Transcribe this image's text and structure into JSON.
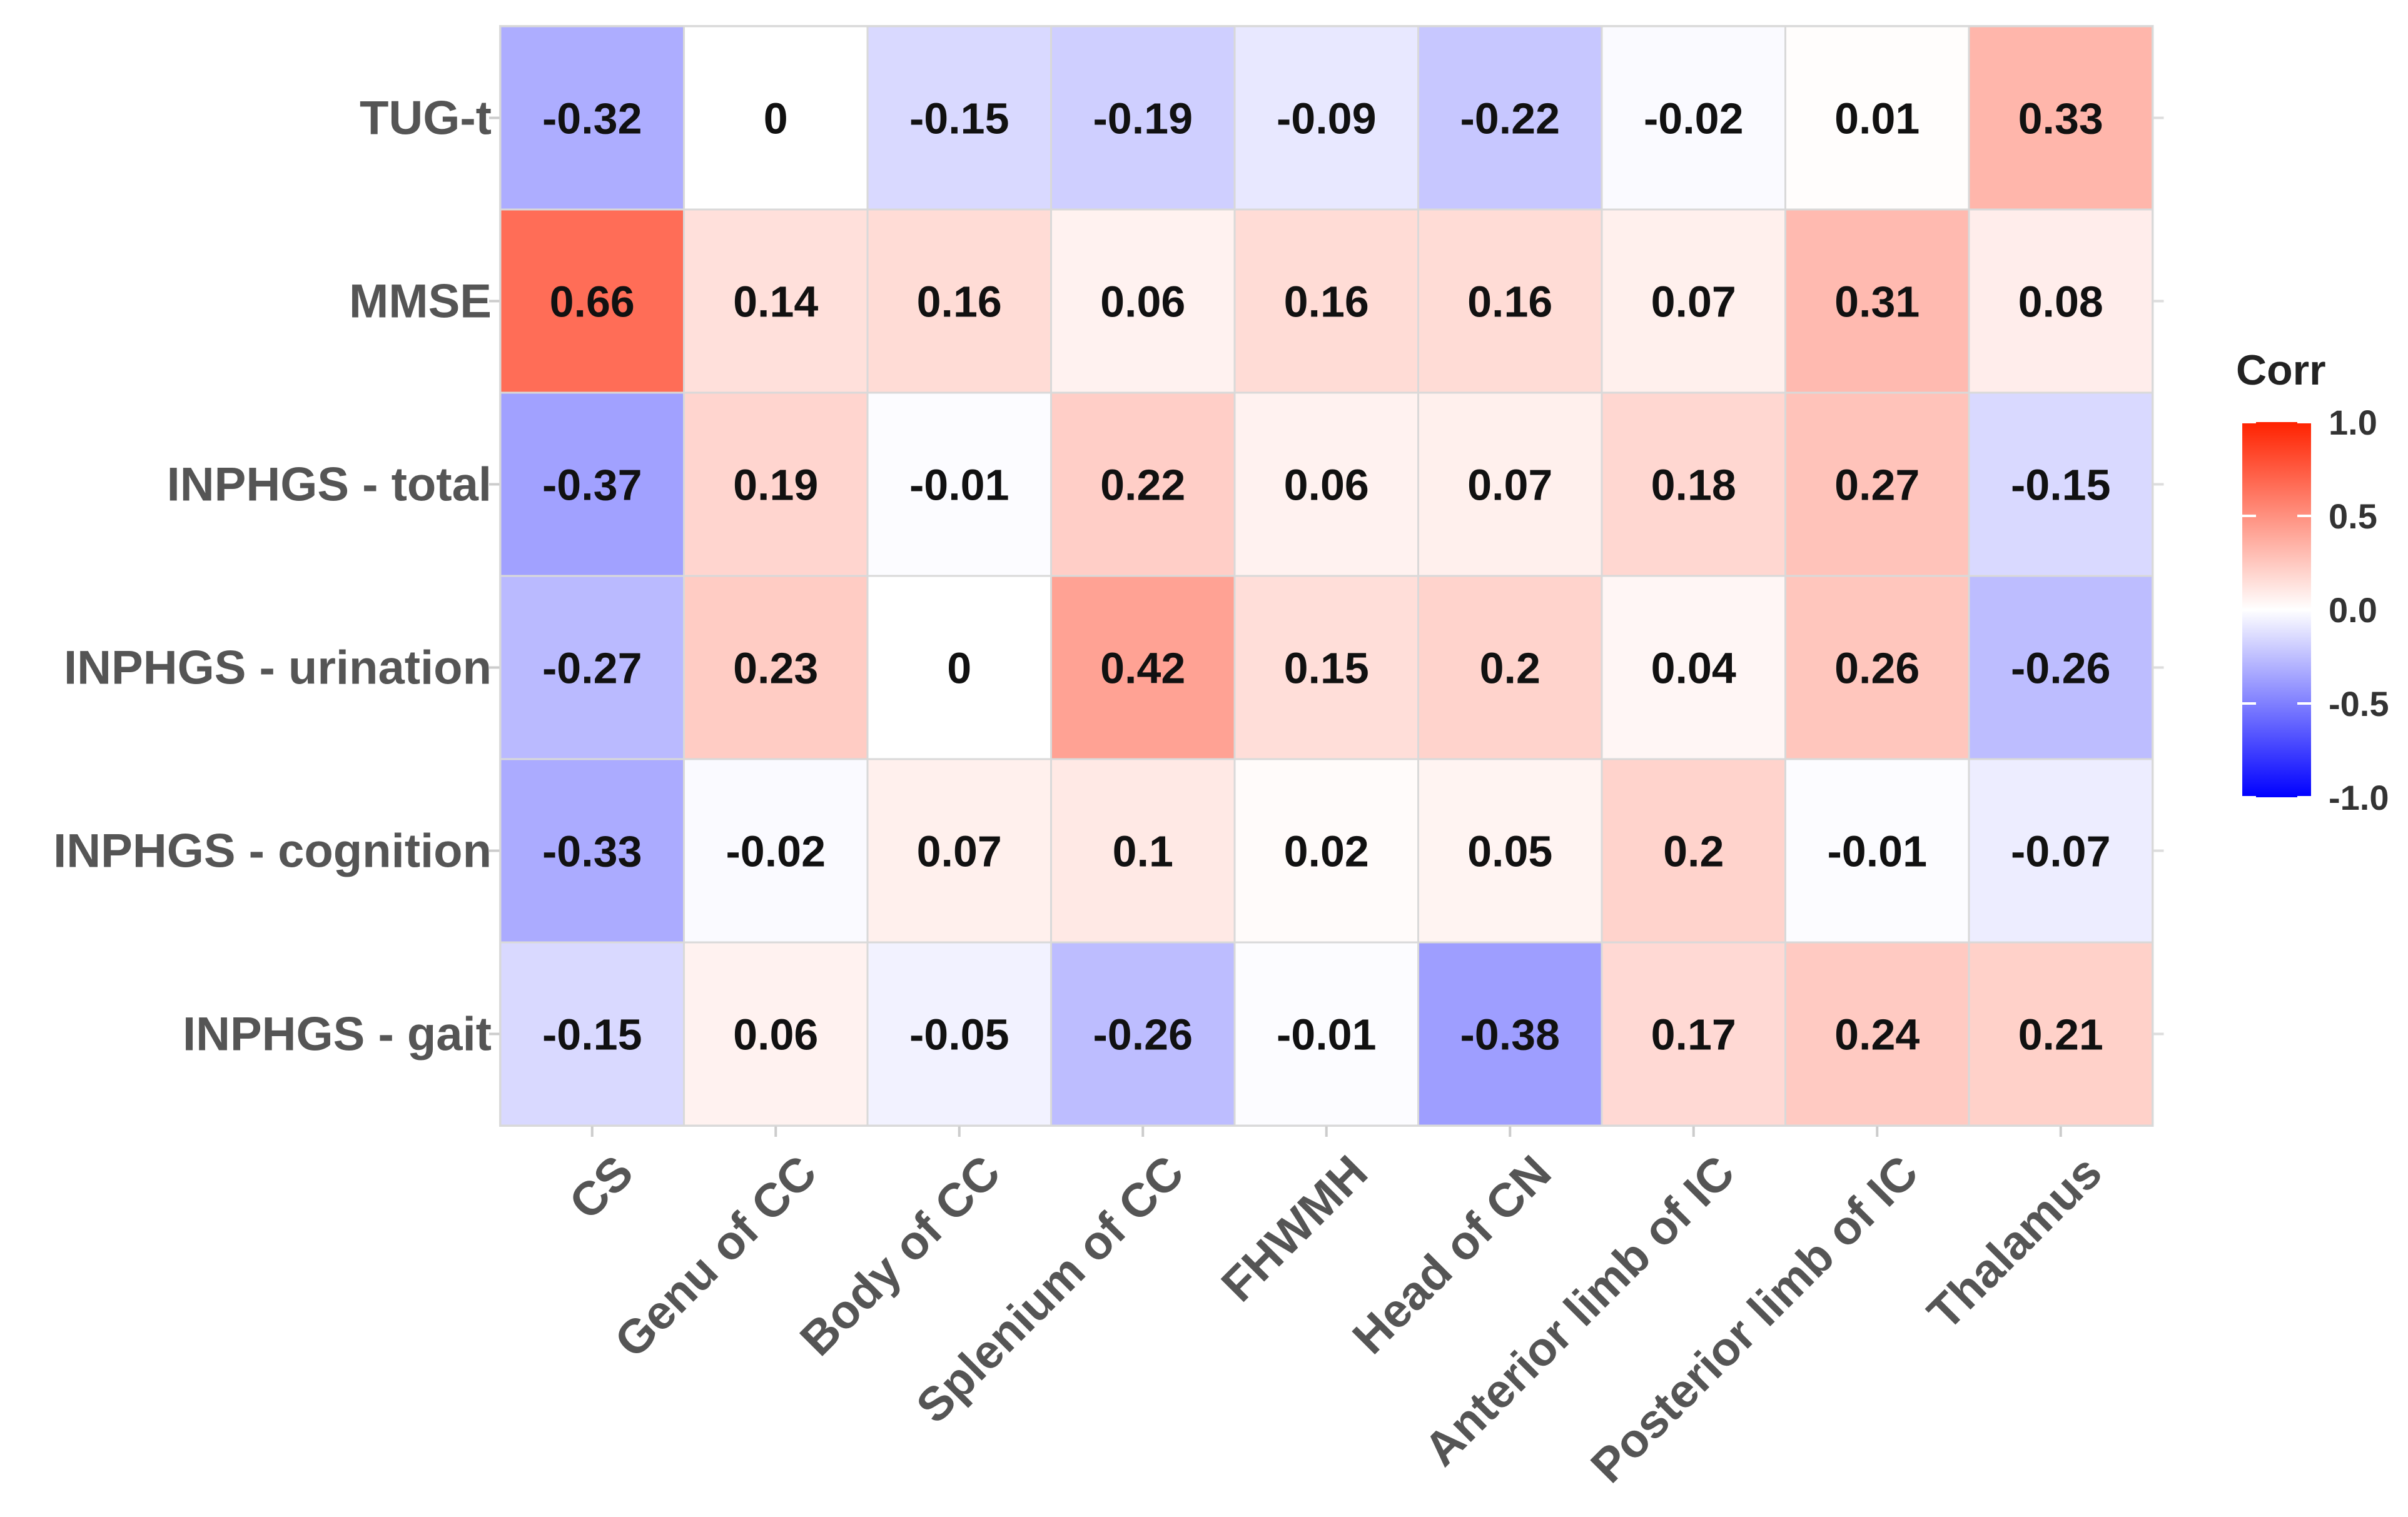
{
  "chart_data": {
    "type": "heatmap",
    "title": "",
    "xlabel": "",
    "ylabel": "",
    "rows": [
      "TUG-t",
      "MMSE",
      "INPHGS - total",
      "INPHGS - urination",
      "INPHGS - cognition",
      "INPHGS - gait"
    ],
    "columns": [
      "CS",
      "Genu of CC",
      "Body of CC",
      "Splenium of CC",
      "FHWMH",
      "Head of CN",
      "Anterior limb of IC",
      "Posterior limb of IC",
      "Thalamus"
    ],
    "values": [
      [
        -0.32,
        0,
        -0.15,
        -0.19,
        -0.09,
        -0.22,
        -0.02,
        0.01,
        0.33
      ],
      [
        0.66,
        0.14,
        0.16,
        0.06,
        0.16,
        0.16,
        0.07,
        0.31,
        0.08
      ],
      [
        -0.37,
        0.19,
        -0.01,
        0.22,
        0.06,
        0.07,
        0.18,
        0.27,
        -0.15
      ],
      [
        -0.27,
        0.23,
        0,
        0.42,
        0.15,
        0.2,
        0.04,
        0.26,
        -0.26
      ],
      [
        -0.33,
        -0.02,
        0.07,
        0.1,
        0.02,
        0.05,
        0.2,
        -0.01,
        -0.07
      ],
      [
        -0.15,
        0.06,
        -0.05,
        -0.26,
        -0.01,
        -0.38,
        0.17,
        0.24,
        0.21
      ]
    ],
    "value_labels": [
      [
        "-0.32",
        "0",
        "-0.15",
        "-0.19",
        "-0.09",
        "-0.22",
        "-0.02",
        "0.01",
        "0.33"
      ],
      [
        "0.66",
        "0.14",
        "0.16",
        "0.06",
        "0.16",
        "0.16",
        "0.07",
        "0.31",
        "0.08"
      ],
      [
        "-0.37",
        "0.19",
        "-0.01",
        "0.22",
        "0.06",
        "0.07",
        "0.18",
        "0.27",
        "-0.15"
      ],
      [
        "-0.27",
        "0.23",
        "0",
        "0.42",
        "0.15",
        "0.2",
        "0.04",
        "0.26",
        "-0.26"
      ],
      [
        "-0.33",
        "-0.02",
        "0.07",
        "0.1",
        "0.02",
        "0.05",
        "0.2",
        "-0.01",
        "-0.07"
      ],
      [
        "-0.15",
        "0.06",
        "-0.05",
        "-0.26",
        "-0.01",
        "-0.38",
        "0.17",
        "0.24",
        "0.21"
      ]
    ],
    "color_scale": {
      "low": "#0000ff",
      "mid": "#ffffff",
      "high": "#ff2200",
      "range": [
        -1,
        1
      ]
    },
    "legend": {
      "title": "Corr",
      "ticks": [
        "1.0",
        "0.5",
        "0.0",
        "-0.5",
        "-1.0"
      ],
      "tick_values": [
        1.0,
        0.5,
        0.0,
        -0.5,
        -1.0
      ],
      "position": "right"
    },
    "grid": true
  }
}
